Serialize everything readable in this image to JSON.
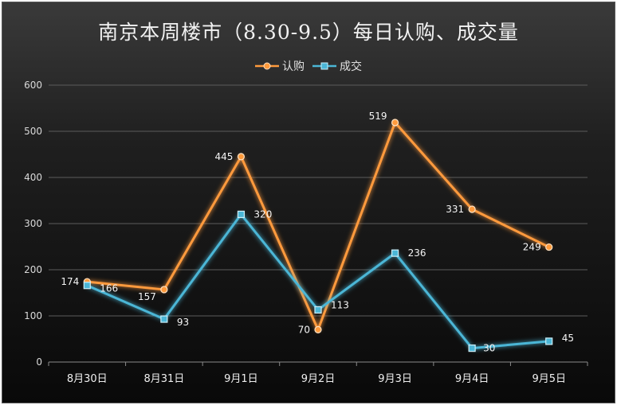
{
  "chart_data": {
    "type": "line",
    "title": "南京本周楼市（8.30-9.5）每日认购、成交量",
    "categories": [
      "8月30日",
      "8月31日",
      "9月1日",
      "9月2日",
      "9月3日",
      "9月4日",
      "9月5日"
    ],
    "series": [
      {
        "name": "认购",
        "values": [
          174,
          157,
          445,
          70,
          519,
          331,
          249
        ],
        "color": "#ff9a3c",
        "marker": "circle"
      },
      {
        "name": "成交",
        "values": [
          166,
          93,
          320,
          113,
          236,
          30,
          45
        ],
        "color": "#4bb6d6",
        "marker": "square"
      }
    ],
    "ylim": [
      0,
      600
    ],
    "yticks": [
      0,
      100,
      200,
      300,
      400,
      500,
      600
    ],
    "grid": true,
    "legend": "top",
    "xlabel": "",
    "ylabel": ""
  }
}
